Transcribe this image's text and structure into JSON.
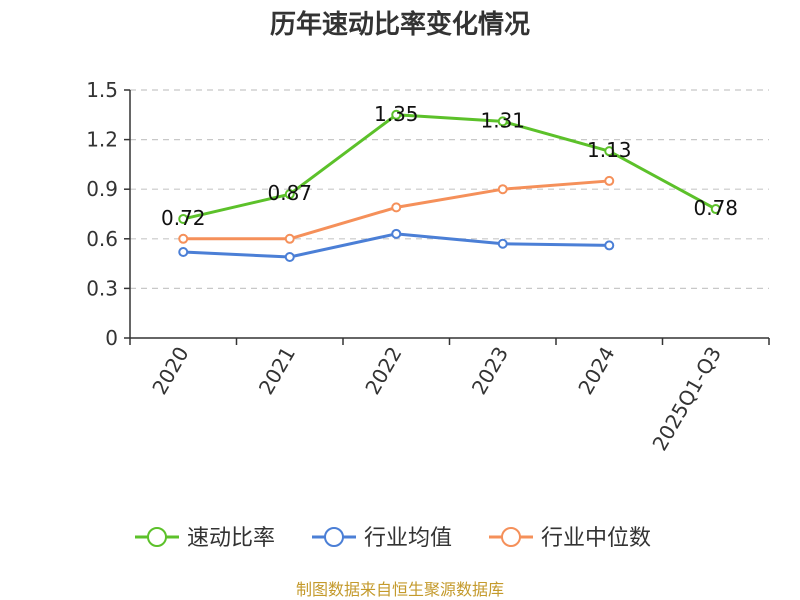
{
  "chart_data": {
    "type": "line",
    "title": "历年速动比率变化情况",
    "categories": [
      "2020",
      "2021",
      "2022",
      "2023",
      "2024",
      "2025Q1-Q3"
    ],
    "ylim": [
      0,
      1.5
    ],
    "yticks": [
      "0",
      "0.3",
      "0.6",
      "0.9",
      "1.2",
      "1.5"
    ],
    "grid": true,
    "legend_position": "bottom",
    "series": [
      {
        "name": "速动比率",
        "color": "#5cc12a",
        "values": [
          0.72,
          0.87,
          1.35,
          1.31,
          1.13,
          0.78
        ],
        "labels": [
          "0.72",
          "0.87",
          "1.35",
          "1.31",
          "1.13",
          "0.78"
        ]
      },
      {
        "name": "行业均值",
        "color": "#4b7fd6",
        "values": [
          0.52,
          0.49,
          0.63,
          0.57,
          0.56,
          null
        ]
      },
      {
        "name": "行业中位数",
        "color": "#f5905a",
        "values": [
          0.6,
          0.6,
          0.79,
          0.9,
          0.95,
          null
        ]
      }
    ]
  },
  "source": {
    "text": "制图数据来自恒生聚源数据库",
    "color": "#c49a2c"
  }
}
